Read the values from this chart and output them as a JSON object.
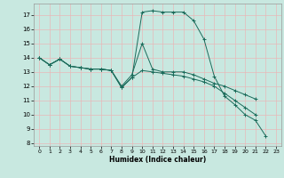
{
  "title": "",
  "xlabel": "Humidex (Indice chaleur)",
  "ylabel": "",
  "bg_color": "#c8e8e0",
  "grid_color": "#e8b8b8",
  "line_color": "#1a6b5a",
  "xlim": [
    -0.5,
    23.5
  ],
  "ylim": [
    7.8,
    17.8
  ],
  "yticks": [
    8,
    9,
    10,
    11,
    12,
    13,
    14,
    15,
    16,
    17
  ],
  "xticks": [
    0,
    1,
    2,
    3,
    4,
    5,
    6,
    7,
    8,
    9,
    10,
    11,
    12,
    13,
    14,
    15,
    16,
    17,
    18,
    19,
    20,
    21,
    22,
    23
  ],
  "series": [
    {
      "x": [
        0,
        1,
        2,
        3,
        4,
        5,
        6,
        7,
        8,
        9,
        10,
        11,
        12,
        13,
        14,
        15,
        16,
        17,
        18,
        19,
        20,
        21,
        22
      ],
      "y": [
        14.0,
        13.5,
        13.9,
        13.4,
        13.3,
        13.2,
        13.2,
        13.1,
        11.9,
        12.6,
        17.2,
        17.3,
        17.2,
        17.2,
        17.2,
        16.6,
        15.3,
        12.7,
        11.3,
        10.7,
        10.0,
        9.6,
        8.5
      ]
    },
    {
      "x": [
        0,
        1,
        2,
        3,
        4,
        5,
        6,
        7,
        8,
        9,
        10,
        11,
        12,
        13,
        14,
        15,
        16,
        17,
        18,
        19,
        20,
        21
      ],
      "y": [
        14.0,
        13.5,
        13.9,
        13.4,
        13.3,
        13.2,
        13.2,
        13.1,
        12.0,
        12.8,
        15.0,
        13.2,
        13.0,
        13.0,
        13.0,
        12.8,
        12.5,
        12.2,
        12.0,
        11.7,
        11.4,
        11.1
      ]
    },
    {
      "x": [
        0,
        1,
        2,
        3,
        4,
        5,
        6,
        7,
        8,
        9,
        10,
        11,
        12,
        13,
        14,
        15,
        16,
        17,
        18,
        19,
        20,
        21
      ],
      "y": [
        14.0,
        13.5,
        13.9,
        13.4,
        13.3,
        13.2,
        13.2,
        13.1,
        11.9,
        12.6,
        13.1,
        13.0,
        12.9,
        12.8,
        12.7,
        12.5,
        12.3,
        12.0,
        11.5,
        11.0,
        10.5,
        10.0
      ]
    }
  ]
}
